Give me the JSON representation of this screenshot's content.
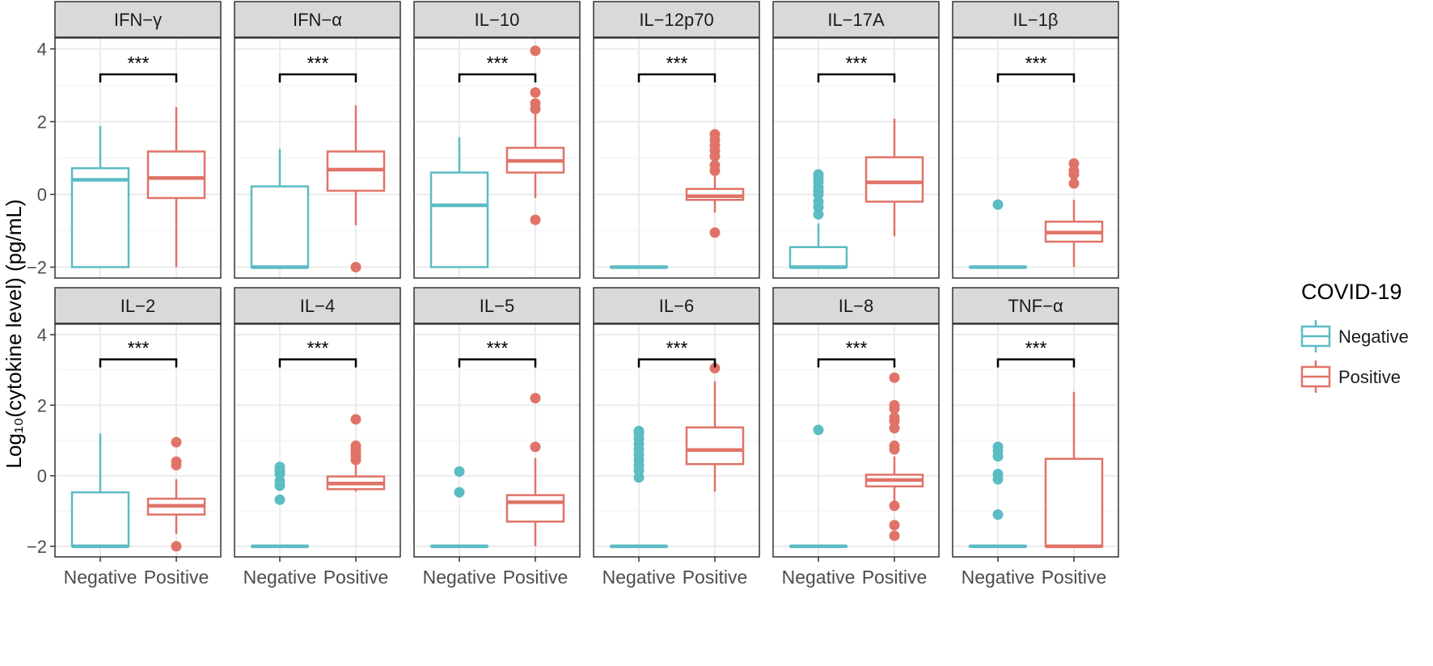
{
  "chart_data": {
    "type": "boxplot",
    "ylabel": "Log₁₀(cytokine level) (pg/mL)",
    "ylim": [
      -2.3,
      4.3
    ],
    "yticks": [
      "−2",
      "0",
      "2",
      "4"
    ],
    "ytick_values": [
      -2,
      0,
      2,
      4
    ],
    "categories": [
      "Negative",
      "Positive"
    ],
    "grid": true,
    "legend": {
      "title": "COVID-19",
      "position": "right",
      "entries": [
        "Negative",
        "Positive"
      ]
    },
    "colors": {
      "Negative": "#5BBCC4",
      "Positive": "#E07368",
      "strip": "#D9D9D9",
      "grid": "#EBEBEB",
      "border": "#333333"
    },
    "significance_label": "***",
    "significance_y": 3.3,
    "panels": [
      {
        "title": "IFN−γ",
        "boxes": [
          {
            "group": "Negative",
            "whisker_low": -2,
            "q1": -2,
            "median": 0.4,
            "q3": 0.72,
            "whisker_high": 1.88,
            "outliers": []
          },
          {
            "group": "Positive",
            "whisker_low": -2,
            "q1": -0.1,
            "median": 0.45,
            "q3": 1.18,
            "whisker_high": 2.4,
            "outliers": []
          }
        ]
      },
      {
        "title": "IFN−α",
        "boxes": [
          {
            "group": "Negative",
            "whisker_low": -2,
            "q1": -2,
            "median": -2,
            "q3": 0.22,
            "whisker_high": 1.25,
            "outliers": []
          },
          {
            "group": "Positive",
            "whisker_low": -0.85,
            "q1": 0.1,
            "median": 0.68,
            "q3": 1.18,
            "whisker_high": 2.45,
            "outliers": [
              -2
            ]
          }
        ]
      },
      {
        "title": "IL−10",
        "boxes": [
          {
            "group": "Negative",
            "whisker_low": -2,
            "q1": -2,
            "median": -0.3,
            "q3": 0.6,
            "whisker_high": 1.57,
            "outliers": []
          },
          {
            "group": "Positive",
            "whisker_low": -0.1,
            "q1": 0.6,
            "median": 0.92,
            "q3": 1.28,
            "whisker_high": 2.25,
            "outliers": [
              -0.7,
              2.35,
              2.5,
              2.8,
              3.95
            ]
          }
        ]
      },
      {
        "title": "IL−12p70",
        "boxes": [
          {
            "group": "Negative",
            "whisker_low": -2,
            "q1": -2,
            "median": -2,
            "q3": -2,
            "whisker_high": -2,
            "outliers": []
          },
          {
            "group": "Positive",
            "whisker_low": -0.5,
            "q1": -0.15,
            "median": -0.05,
            "q3": 0.15,
            "whisker_high": 0.55,
            "outliers": [
              -1.05,
              0.65,
              0.8,
              1.05,
              1.2,
              1.35,
              1.5,
              1.65
            ]
          }
        ]
      },
      {
        "title": "IL−17A",
        "boxes": [
          {
            "group": "Negative",
            "whisker_low": -2,
            "q1": -2,
            "median": -2,
            "q3": -1.45,
            "whisker_high": -0.8,
            "outliers": [
              -0.55,
              -0.35,
              -0.2,
              0,
              0.1,
              0.2,
              0.35,
              0.45,
              0.55
            ]
          },
          {
            "group": "Positive",
            "whisker_low": -1.15,
            "q1": -0.2,
            "median": 0.33,
            "q3": 1.02,
            "whisker_high": 2.08,
            "outliers": []
          }
        ]
      },
      {
        "title": "IL−1β",
        "boxes": [
          {
            "group": "Negative",
            "whisker_low": -2,
            "q1": -2,
            "median": -2,
            "q3": -2,
            "whisker_high": -2,
            "outliers": [
              -0.28
            ]
          },
          {
            "group": "Positive",
            "whisker_low": -2,
            "q1": -1.3,
            "median": -1.05,
            "q3": -0.75,
            "whisker_high": -0.15,
            "outliers": [
              0.3,
              0.55,
              0.65,
              0.85
            ]
          }
        ]
      },
      {
        "title": "IL−2",
        "boxes": [
          {
            "group": "Negative",
            "whisker_low": -2,
            "q1": -2,
            "median": -2,
            "q3": -0.47,
            "whisker_high": 1.2,
            "outliers": []
          },
          {
            "group": "Positive",
            "whisker_low": -1.65,
            "q1": -1.1,
            "median": -0.85,
            "q3": -0.65,
            "whisker_high": -0.1,
            "outliers": [
              -2,
              0.3,
              0.4,
              0.95
            ]
          }
        ]
      },
      {
        "title": "IL−4",
        "boxes": [
          {
            "group": "Negative",
            "whisker_low": -2,
            "q1": -2,
            "median": -2,
            "q3": -2,
            "whisker_high": -2,
            "outliers": [
              -0.68,
              -0.28,
              -0.15,
              0.05,
              0.15,
              0.25
            ]
          },
          {
            "group": "Positive",
            "whisker_low": -0.45,
            "q1": -0.38,
            "median": -0.22,
            "q3": -0.02,
            "whisker_high": 0.35,
            "outliers": [
              0.45,
              0.55,
              0.65,
              0.75,
              0.85,
              1.6
            ]
          }
        ]
      },
      {
        "title": "IL−5",
        "boxes": [
          {
            "group": "Negative",
            "whisker_low": -2,
            "q1": -2,
            "median": -2,
            "q3": -2,
            "whisker_high": -2,
            "outliers": [
              -0.47,
              0.12
            ]
          },
          {
            "group": "Positive",
            "whisker_low": -2,
            "q1": -1.3,
            "median": -0.75,
            "q3": -0.55,
            "whisker_high": 0.5,
            "outliers": [
              0.82,
              2.2
            ]
          }
        ]
      },
      {
        "title": "IL−6",
        "boxes": [
          {
            "group": "Negative",
            "whisker_low": -2,
            "q1": -2,
            "median": -2,
            "q3": -2,
            "whisker_high": -2,
            "outliers": [
              -0.05,
              0.15,
              0.3,
              0.45,
              0.6,
              0.75,
              0.9,
              1.05,
              1.2,
              1.27
            ]
          },
          {
            "group": "Positive",
            "whisker_low": -0.45,
            "q1": 0.33,
            "median": 0.73,
            "q3": 1.37,
            "whisker_high": 2.68,
            "outliers": [
              3.05
            ]
          }
        ]
      },
      {
        "title": "IL−8",
        "boxes": [
          {
            "group": "Negative",
            "whisker_low": -2,
            "q1": -2,
            "median": -2,
            "q3": -2,
            "whisker_high": -2,
            "outliers": [
              1.3
            ]
          },
          {
            "group": "Positive",
            "whisker_low": -0.75,
            "q1": -0.3,
            "median": -0.12,
            "q3": 0.03,
            "whisker_high": 0.55,
            "outliers": [
              -1.7,
              -1.4,
              -0.85,
              0.75,
              0.85,
              1.35,
              1.55,
              1.65,
              1.9,
              2.0,
              2.78
            ]
          }
        ]
      },
      {
        "title": "TNF−α",
        "boxes": [
          {
            "group": "Negative",
            "whisker_low": -2,
            "q1": -2,
            "median": -2,
            "q3": -2,
            "whisker_high": -2,
            "outliers": [
              -1.1,
              -0.1,
              0.05,
              0.55,
              0.7,
              0.82
            ]
          },
          {
            "group": "Positive",
            "whisker_low": -2,
            "q1": -2,
            "median": -2,
            "q3": 0.48,
            "whisker_high": 2.38,
            "outliers": []
          }
        ]
      }
    ]
  }
}
